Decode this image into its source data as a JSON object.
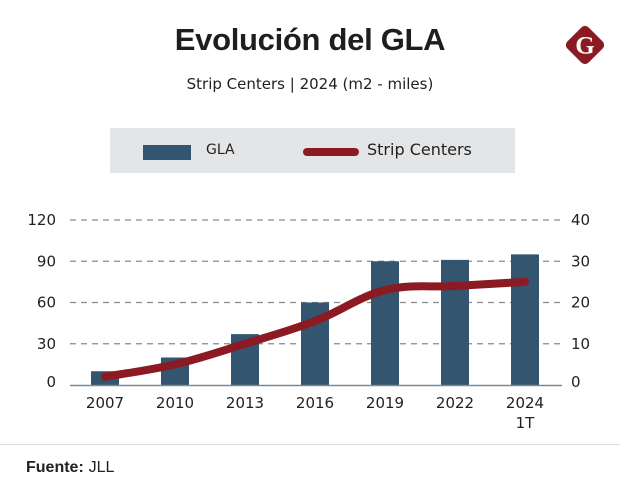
{
  "header": {
    "title": "Evolución del GLA",
    "subtitle": "Strip Centers | 2024  (m2 - miles)",
    "logo_letter": "G"
  },
  "legend": {
    "bar_label": "GLA",
    "line_label": "Strip Centers"
  },
  "footer": {
    "source_label": "Fuente:",
    "source_value": "JLL"
  },
  "colors": {
    "bar": "#33556f",
    "line": "#8c1a22",
    "logo": "#8c1a22",
    "legend_bg": "#e4e5e7",
    "grid": "#8a8a8a"
  },
  "chart_data": {
    "type": "bar",
    "title": "Evolución del GLA",
    "subtitle": "Strip Centers | 2024  (m2 - miles)",
    "categories": [
      "2007",
      "2010",
      "2013",
      "2016",
      "2019",
      "2022",
      "2024"
    ],
    "category_sublabels": [
      "",
      "",
      "",
      "",
      "",
      "",
      "1T"
    ],
    "series": [
      {
        "name": "GLA",
        "type": "bar",
        "axis": "left",
        "values": [
          10,
          20,
          37,
          60,
          90,
          91,
          95
        ]
      },
      {
        "name": "Strip Centers",
        "type": "line",
        "axis": "right",
        "values": [
          2,
          5,
          10,
          15.5,
          23,
          24,
          25
        ]
      }
    ],
    "y_left": {
      "ticks": [
        0,
        30,
        60,
        90,
        120
      ],
      "ylim": [
        0,
        120
      ]
    },
    "y_right": {
      "ticks": [
        0,
        10,
        20,
        30,
        40
      ],
      "ylim": [
        0,
        40
      ]
    },
    "xlabel": "",
    "ylabel": "",
    "grid": true,
    "legend_position": "top"
  }
}
